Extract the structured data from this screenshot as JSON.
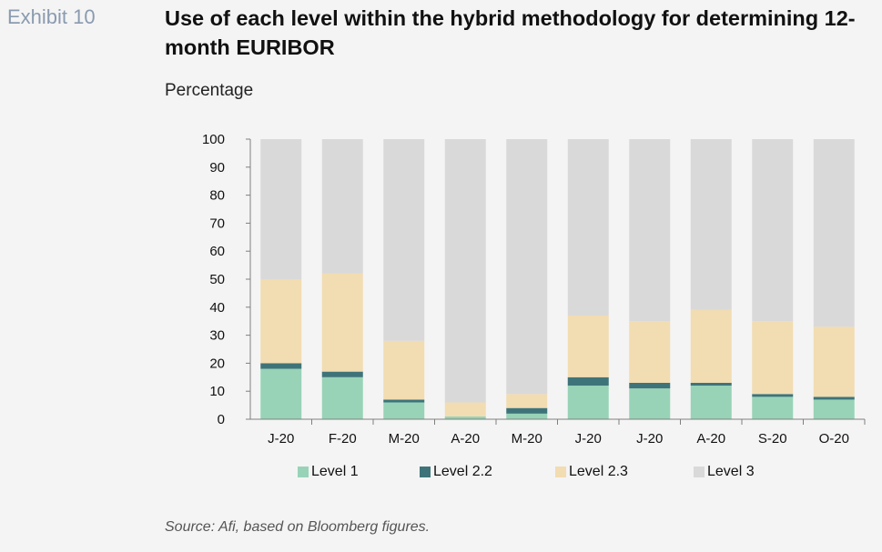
{
  "exhibit_label": "Exhibit 10",
  "source": "Source: Afi, based on Bloomberg figures.",
  "chart_data": {
    "type": "bar",
    "stacked": true,
    "title": "Use of each level within the hybrid methodology for determining 12-month EURIBOR",
    "subtitle": "Percentage",
    "xlabel": "",
    "ylabel": "",
    "ylim": [
      0,
      100
    ],
    "yticks": [
      0,
      10,
      20,
      30,
      40,
      50,
      60,
      70,
      80,
      90,
      100
    ],
    "categories": [
      "J-20",
      "F-20",
      "M-20",
      "A-20",
      "M-20",
      "J-20",
      "J-20",
      "A-20",
      "S-20",
      "O-20"
    ],
    "series": [
      {
        "name": "Level 1",
        "color": "#98d3b7",
        "values": [
          18,
          15,
          6,
          1,
          2,
          12,
          11,
          12,
          8,
          7
        ]
      },
      {
        "name": "Level 2.2",
        "color": "#3e7479",
        "values": [
          2,
          2,
          1,
          0,
          2,
          3,
          2,
          1,
          1,
          1
        ]
      },
      {
        "name": "Level 2.3",
        "color": "#f2dcb1",
        "values": [
          30,
          35,
          21,
          5,
          5,
          22,
          22,
          26,
          26,
          25
        ]
      },
      {
        "name": "Level 3",
        "color": "#d9d9d9",
        "values": [
          50,
          48,
          72,
          94,
          91,
          63,
          65,
          61,
          65,
          67
        ]
      }
    ],
    "grid": false,
    "legend_position": "bottom"
  }
}
